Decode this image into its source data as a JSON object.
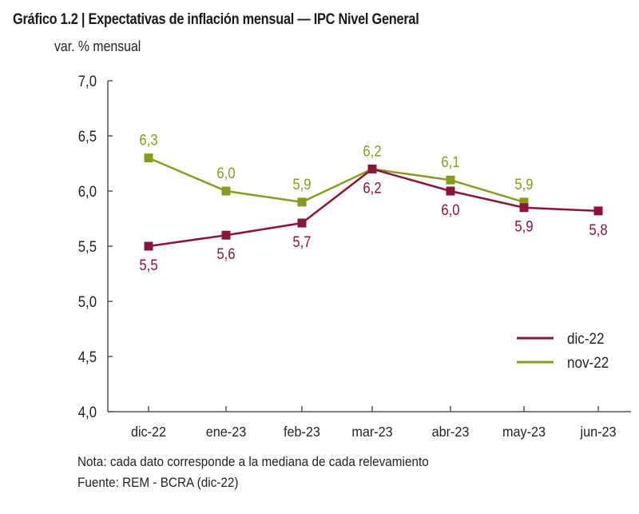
{
  "header": {
    "title": "Gráfico 1.2 | Expectativas de inflación mensual — IPC Nivel General",
    "unit_label": "var. % mensual"
  },
  "footer": {
    "note": "Nota: cada dato corresponde a la mediana de cada relevamiento",
    "source": "Fuente: REM - BCRA (dic-22)"
  },
  "chart_data": {
    "type": "line",
    "title": "Gráfico 1.2 | Expectativas de inflación mensual — IPC Nivel General",
    "xlabel": "",
    "ylabel": "var. % mensual",
    "categories": [
      "dic-22",
      "ene-23",
      "feb-23",
      "mar-23",
      "abr-23",
      "may-23",
      "jun-23"
    ],
    "ylim": [
      4.0,
      7.0
    ],
    "yticks": [
      4.0,
      4.5,
      5.0,
      5.5,
      6.0,
      6.5,
      7.0
    ],
    "ytick_labels": [
      "4,0",
      "4,5",
      "5,0",
      "5,5",
      "6,0",
      "6,5",
      "7,0"
    ],
    "grid": false,
    "legend_position": "bottom-right",
    "series": [
      {
        "name": "dic-22",
        "color": "#8b1538",
        "values": [
          5.5,
          5.6,
          5.71,
          6.2,
          6.0,
          5.85,
          5.82
        ],
        "labels": [
          "5,5",
          "5,6",
          "5,7",
          "6,2",
          "6,0",
          "5,9",
          "5,8"
        ],
        "label_position": "below"
      },
      {
        "name": "nov-22",
        "color": "#8a9a1e",
        "values": [
          6.3,
          6.0,
          5.9,
          6.2,
          6.1,
          5.9,
          null
        ],
        "labels": [
          "6,3",
          "6,0",
          "5,9",
          "6,2",
          "6,1",
          "5,9",
          null
        ],
        "label_position": "above"
      }
    ]
  }
}
